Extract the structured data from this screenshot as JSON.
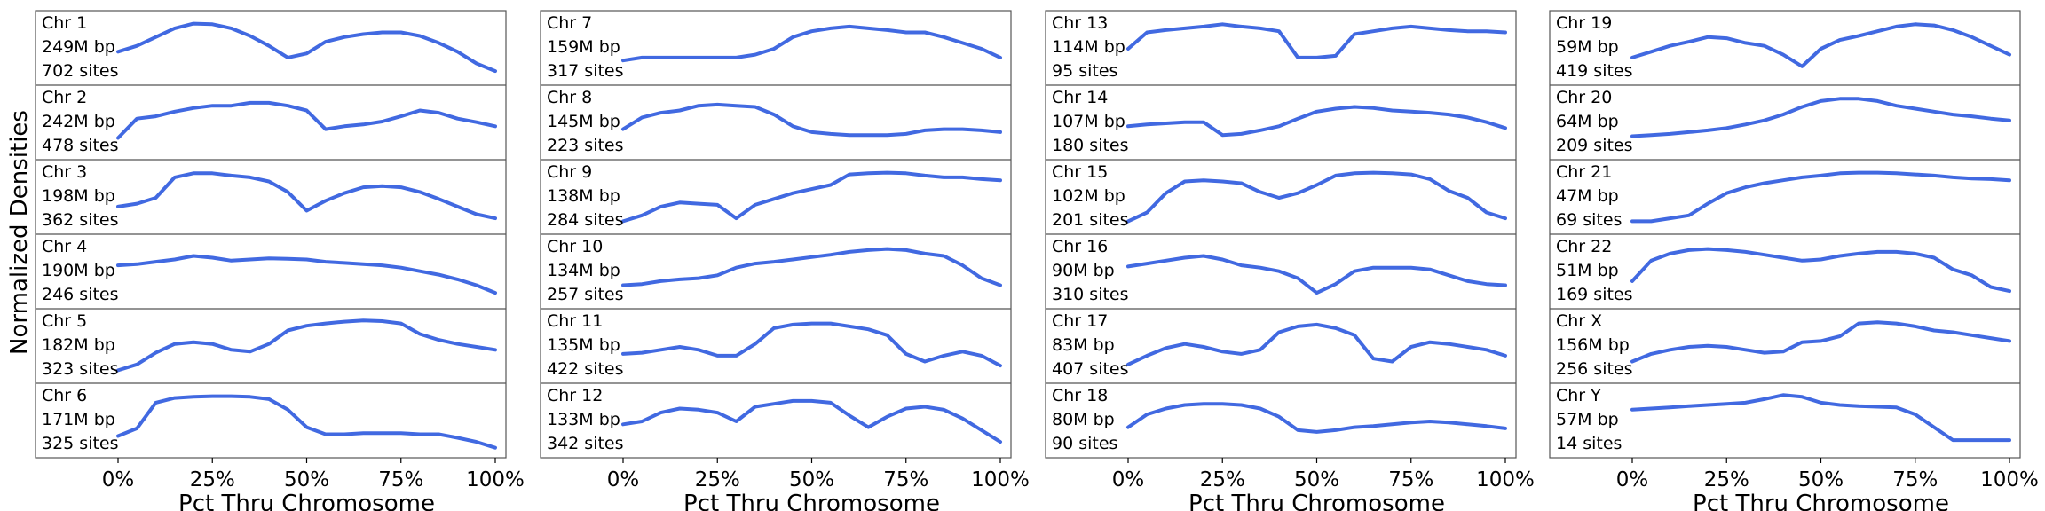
{
  "chart_data": {
    "type": "line",
    "ylabel": "Normalized Densities",
    "xlabel": "Pct Thru Chromosome",
    "x_ticks": [
      "0%",
      "25%",
      "50%",
      "75%",
      "100%"
    ],
    "x": [
      0,
      5,
      10,
      15,
      20,
      25,
      30,
      35,
      40,
      45,
      50,
      55,
      60,
      65,
      70,
      75,
      80,
      85,
      90,
      95,
      100
    ],
    "color": "#4169e1",
    "panels": [
      {
        "column": 0,
        "row": 0,
        "name": "Chr 1",
        "size": "249M bp",
        "sites": "702 sites",
        "values": [
          0.45,
          0.55,
          0.7,
          0.85,
          0.93,
          0.92,
          0.85,
          0.72,
          0.55,
          0.35,
          0.42,
          0.62,
          0.7,
          0.75,
          0.78,
          0.78,
          0.72,
          0.6,
          0.45,
          0.25,
          0.12
        ]
      },
      {
        "column": 0,
        "row": 1,
        "name": "Chr 2",
        "size": "242M bp",
        "sites": "478 sites",
        "values": [
          0.25,
          0.58,
          0.62,
          0.7,
          0.76,
          0.8,
          0.8,
          0.85,
          0.85,
          0.8,
          0.72,
          0.4,
          0.45,
          0.48,
          0.53,
          0.62,
          0.72,
          0.68,
          0.58,
          0.52,
          0.45
        ]
      },
      {
        "column": 0,
        "row": 2,
        "name": "Chr 3",
        "size": "198M bp",
        "sites": "362 sites",
        "values": [
          0.35,
          0.4,
          0.5,
          0.85,
          0.92,
          0.92,
          0.88,
          0.85,
          0.78,
          0.6,
          0.28,
          0.45,
          0.58,
          0.68,
          0.7,
          0.68,
          0.6,
          0.48,
          0.35,
          0.22,
          0.15
        ]
      },
      {
        "column": 0,
        "row": 3,
        "name": "Chr 4",
        "size": "190M bp",
        "sites": "246 sites",
        "values": [
          0.62,
          0.64,
          0.68,
          0.72,
          0.78,
          0.75,
          0.7,
          0.72,
          0.74,
          0.73,
          0.72,
          0.68,
          0.66,
          0.64,
          0.62,
          0.58,
          0.52,
          0.46,
          0.38,
          0.28,
          0.15
        ]
      },
      {
        "column": 0,
        "row": 4,
        "name": "Chr 5",
        "size": "182M bp",
        "sites": "323 sites",
        "values": [
          0.1,
          0.2,
          0.4,
          0.55,
          0.58,
          0.55,
          0.45,
          0.42,
          0.55,
          0.78,
          0.86,
          0.9,
          0.93,
          0.95,
          0.94,
          0.9,
          0.72,
          0.62,
          0.55,
          0.5,
          0.45
        ]
      },
      {
        "column": 0,
        "row": 5,
        "name": "Chr 6",
        "size": "171M bp",
        "sites": "325 sites",
        "values": [
          0.25,
          0.38,
          0.82,
          0.9,
          0.92,
          0.93,
          0.93,
          0.92,
          0.88,
          0.7,
          0.4,
          0.28,
          0.28,
          0.3,
          0.3,
          0.3,
          0.28,
          0.28,
          0.22,
          0.15,
          0.05
        ]
      },
      {
        "column": 1,
        "row": 0,
        "name": "Chr 7",
        "size": "159M bp",
        "sites": "317 sites",
        "values": [
          0.3,
          0.35,
          0.35,
          0.35,
          0.35,
          0.35,
          0.35,
          0.4,
          0.5,
          0.7,
          0.8,
          0.85,
          0.88,
          0.85,
          0.82,
          0.78,
          0.78,
          0.7,
          0.6,
          0.5,
          0.35
        ]
      },
      {
        "column": 1,
        "row": 1,
        "name": "Chr 8",
        "size": "145M bp",
        "sites": "223 sites",
        "values": [
          0.4,
          0.6,
          0.68,
          0.72,
          0.8,
          0.82,
          0.8,
          0.78,
          0.65,
          0.45,
          0.35,
          0.32,
          0.3,
          0.3,
          0.3,
          0.32,
          0.38,
          0.4,
          0.4,
          0.38,
          0.35
        ]
      },
      {
        "column": 1,
        "row": 2,
        "name": "Chr 9",
        "size": "138M bp",
        "sites": "284 sites",
        "values": [
          0.1,
          0.2,
          0.35,
          0.42,
          0.4,
          0.38,
          0.15,
          0.38,
          0.48,
          0.58,
          0.65,
          0.72,
          0.9,
          0.92,
          0.93,
          0.92,
          0.88,
          0.85,
          0.85,
          0.82,
          0.8
        ]
      },
      {
        "column": 1,
        "row": 3,
        "name": "Chr 10",
        "size": "134M bp",
        "sites": "257 sites",
        "values": [
          0.28,
          0.3,
          0.35,
          0.38,
          0.4,
          0.45,
          0.58,
          0.65,
          0.68,
          0.72,
          0.76,
          0.8,
          0.85,
          0.88,
          0.9,
          0.88,
          0.82,
          0.78,
          0.62,
          0.4,
          0.28
        ]
      },
      {
        "column": 1,
        "row": 4,
        "name": "Chr 11",
        "size": "135M bp",
        "sites": "422 sites",
        "values": [
          0.38,
          0.4,
          0.45,
          0.5,
          0.45,
          0.35,
          0.35,
          0.55,
          0.82,
          0.88,
          0.9,
          0.9,
          0.85,
          0.8,
          0.7,
          0.38,
          0.25,
          0.35,
          0.42,
          0.35,
          0.18
        ]
      },
      {
        "column": 1,
        "row": 5,
        "name": "Chr 12",
        "size": "133M bp",
        "sites": "342 sites",
        "values": [
          0.45,
          0.5,
          0.65,
          0.72,
          0.7,
          0.65,
          0.5,
          0.75,
          0.8,
          0.85,
          0.85,
          0.82,
          0.6,
          0.4,
          0.58,
          0.72,
          0.75,
          0.7,
          0.55,
          0.35,
          0.15
        ]
      },
      {
        "column": 2,
        "row": 0,
        "name": "Chr 13",
        "size": "114M bp",
        "sites": "95 sites",
        "values": [
          0.5,
          0.78,
          0.82,
          0.85,
          0.88,
          0.92,
          0.88,
          0.85,
          0.8,
          0.35,
          0.35,
          0.38,
          0.75,
          0.8,
          0.85,
          0.88,
          0.85,
          0.82,
          0.8,
          0.8,
          0.78
        ]
      },
      {
        "column": 2,
        "row": 1,
        "name": "Chr 14",
        "size": "107M bp",
        "sites": "180 sites",
        "values": [
          0.45,
          0.48,
          0.5,
          0.52,
          0.52,
          0.3,
          0.32,
          0.38,
          0.45,
          0.58,
          0.7,
          0.75,
          0.78,
          0.76,
          0.72,
          0.7,
          0.68,
          0.65,
          0.6,
          0.52,
          0.42
        ]
      },
      {
        "column": 2,
        "row": 2,
        "name": "Chr 15",
        "size": "102M bp",
        "sites": "201 sites",
        "values": [
          0.1,
          0.25,
          0.58,
          0.78,
          0.8,
          0.78,
          0.75,
          0.6,
          0.5,
          0.58,
          0.72,
          0.88,
          0.92,
          0.93,
          0.92,
          0.9,
          0.82,
          0.62,
          0.5,
          0.25,
          0.15
        ]
      },
      {
        "column": 2,
        "row": 3,
        "name": "Chr 16",
        "size": "90M bp",
        "sites": "310 sites",
        "values": [
          0.6,
          0.65,
          0.7,
          0.75,
          0.78,
          0.72,
          0.62,
          0.58,
          0.52,
          0.4,
          0.15,
          0.3,
          0.52,
          0.58,
          0.58,
          0.58,
          0.55,
          0.45,
          0.35,
          0.3,
          0.28
        ]
      },
      {
        "column": 2,
        "row": 4,
        "name": "Chr 17",
        "size": "83M bp",
        "sites": "407 sites",
        "values": [
          0.2,
          0.35,
          0.48,
          0.55,
          0.5,
          0.42,
          0.38,
          0.45,
          0.75,
          0.85,
          0.88,
          0.82,
          0.7,
          0.3,
          0.25,
          0.5,
          0.58,
          0.55,
          0.5,
          0.45,
          0.35
        ]
      },
      {
        "column": 2,
        "row": 5,
        "name": "Chr 18",
        "size": "80M bp",
        "sites": "90 sites",
        "values": [
          0.4,
          0.62,
          0.72,
          0.78,
          0.8,
          0.8,
          0.78,
          0.72,
          0.58,
          0.35,
          0.32,
          0.35,
          0.4,
          0.42,
          0.45,
          0.48,
          0.5,
          0.48,
          0.45,
          0.42,
          0.38
        ]
      },
      {
        "column": 3,
        "row": 0,
        "name": "Chr 19",
        "size": "59M bp",
        "sites": "419 sites",
        "values": [
          0.35,
          0.45,
          0.55,
          0.62,
          0.7,
          0.68,
          0.6,
          0.55,
          0.4,
          0.2,
          0.5,
          0.65,
          0.72,
          0.8,
          0.88,
          0.92,
          0.9,
          0.82,
          0.7,
          0.55,
          0.4
        ]
      },
      {
        "column": 3,
        "row": 1,
        "name": "Chr 20",
        "size": "64M bp",
        "sites": "209 sites",
        "values": [
          0.28,
          0.3,
          0.32,
          0.35,
          0.38,
          0.42,
          0.48,
          0.55,
          0.65,
          0.78,
          0.88,
          0.92,
          0.92,
          0.88,
          0.8,
          0.75,
          0.7,
          0.65,
          0.62,
          0.58,
          0.55
        ]
      },
      {
        "column": 3,
        "row": 2,
        "name": "Chr 21",
        "size": "47M bp",
        "sites": "69 sites",
        "values": [
          0.1,
          0.1,
          0.15,
          0.2,
          0.4,
          0.58,
          0.68,
          0.75,
          0.8,
          0.85,
          0.88,
          0.92,
          0.93,
          0.93,
          0.92,
          0.9,
          0.88,
          0.85,
          0.83,
          0.82,
          0.8
        ]
      },
      {
        "column": 3,
        "row": 3,
        "name": "Chr 22",
        "size": "51M bp",
        "sites": "169 sites",
        "values": [
          0.35,
          0.7,
          0.82,
          0.88,
          0.9,
          0.88,
          0.85,
          0.8,
          0.75,
          0.7,
          0.72,
          0.78,
          0.82,
          0.85,
          0.85,
          0.82,
          0.75,
          0.55,
          0.45,
          0.25,
          0.18
        ]
      },
      {
        "column": 3,
        "row": 4,
        "name": "Chr X",
        "size": "156M bp",
        "sites": "256 sites",
        "values": [
          0.25,
          0.38,
          0.45,
          0.5,
          0.52,
          0.5,
          0.45,
          0.4,
          0.42,
          0.58,
          0.6,
          0.68,
          0.9,
          0.92,
          0.9,
          0.85,
          0.78,
          0.75,
          0.7,
          0.65,
          0.6
        ]
      },
      {
        "column": 3,
        "row": 5,
        "name": "Chr Y",
        "size": "57M bp",
        "sites": "14 sites",
        "values": [
          0.7,
          0.72,
          0.74,
          0.76,
          0.78,
          0.8,
          0.82,
          0.88,
          0.95,
          0.92,
          0.82,
          0.78,
          0.76,
          0.75,
          0.74,
          0.62,
          0.4,
          0.18,
          0.18,
          0.18,
          0.18
        ]
      }
    ]
  }
}
